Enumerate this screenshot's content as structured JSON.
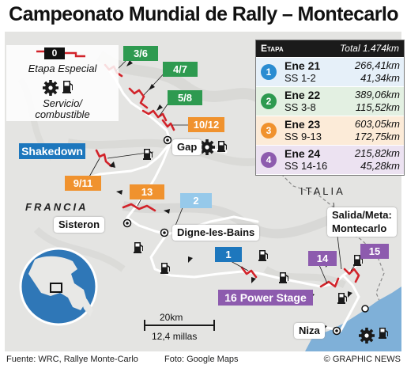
{
  "title": "Campeonato Mundial de Rally – Montecarlo",
  "legend": {
    "sample_number": "0",
    "special_stage_label": "Etapa Especial",
    "service_label_line1": "Servicio/",
    "service_label_line2": "combustible"
  },
  "table": {
    "header_stage": "Etapa",
    "header_total": "Total 1.474km",
    "rows": [
      {
        "number": "1",
        "date": "Ene 21",
        "stages": "SS 1-2",
        "km_total": "266,41km",
        "km_special": "41,34km",
        "color": "#e6f0f9",
        "badge_color": "#2a8cd1"
      },
      {
        "number": "2",
        "date": "Ene 22",
        "stages": "SS 3-8",
        "km_total": "389,06km",
        "km_special": "115,52km",
        "color": "#e3f0e2",
        "badge_color": "#2e9a50"
      },
      {
        "number": "3",
        "date": "Ene 23",
        "stages": "SS 9-13",
        "km_total": "603,05km",
        "km_special": "172,75km",
        "color": "#fcebd8",
        "badge_color": "#f0922e"
      },
      {
        "number": "4",
        "date": "Ene 24",
        "stages": "SS 14-16",
        "km_total": "215,82km",
        "km_special": "45,28km",
        "color": "#ece2f1",
        "badge_color": "#8d5bae"
      }
    ]
  },
  "stages": {
    "s3_6": "3/6",
    "s4_7": "4/7",
    "s5_8": "5/8",
    "s10_12": "10/12",
    "s9_11": "9/11",
    "s13": "13",
    "s2": "2",
    "s1": "1",
    "s14": "14",
    "s15": "15",
    "shakedown": "Shakedown",
    "power_stage": "16 Power Stage"
  },
  "places": {
    "gap": "Gap",
    "sisteron": "Sisteron",
    "digne": "Digne-les-Bains",
    "niza": "Niza",
    "salida_line1": "Salida/Meta:",
    "salida_line2": "Montecarlo",
    "francia": "FRANCIA",
    "italia": "ITALIA"
  },
  "scale": {
    "km": "20km",
    "miles": "12,4 millas"
  },
  "footer": {
    "source": "Fuente: WRC, Rallye Monte-Carlo",
    "photo": "Foto: Google Maps",
    "credit": "© GRAPHIC NEWS"
  },
  "colors": {
    "route": "#ffffff",
    "special_stage": "#d2232a",
    "sea": "#7fb0d8",
    "land": "#e4e4e2"
  },
  "icons": [
    "gear-icon",
    "fuel-pump-icon",
    "start-finish-dot-icon"
  ]
}
